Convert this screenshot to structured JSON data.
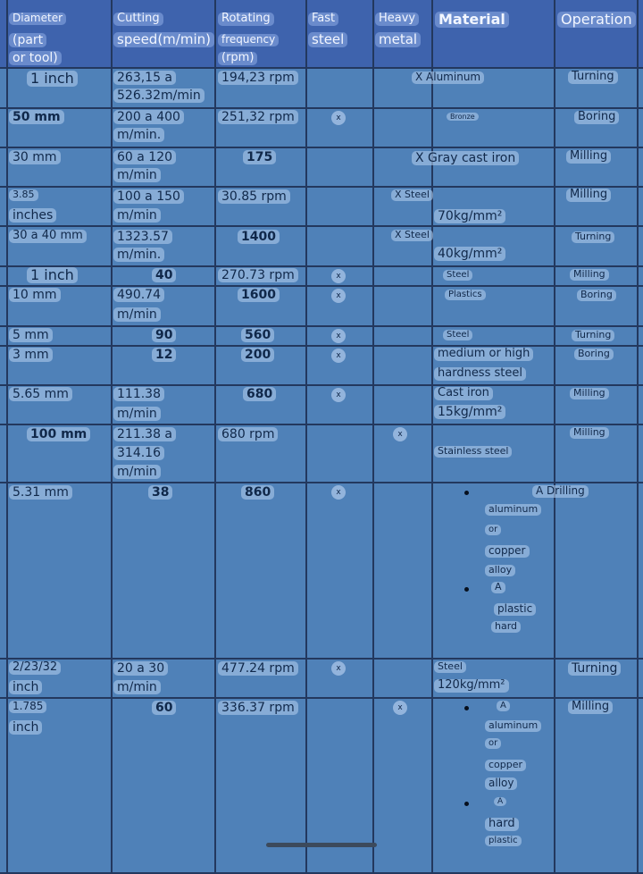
{
  "headers": {
    "diameter": [
      "Diameter",
      "(part",
      "or tool)"
    ],
    "cutting": [
      "Cutting",
      "speed(m/min)"
    ],
    "rotating": [
      "Rotating",
      "frequency",
      "(rpm)"
    ],
    "fast": [
      "Fast",
      "steel"
    ],
    "heavy": [
      "Heavy",
      "metal"
    ],
    "material": "Material",
    "operation": "Operation"
  },
  "rows": [
    {
      "diameter": [
        "1 inch"
      ],
      "cutting": [
        "263,15 a",
        "526.32m/min"
      ],
      "rpm": "194,23 rpm",
      "fast": "",
      "heavy": "",
      "material": [
        "X Aluminum"
      ],
      "operation": "Turning"
    },
    {
      "diameter": [
        "50 mm"
      ],
      "cutting": [
        "200 a 400",
        "m/min."
      ],
      "rpm": "251,32 rpm",
      "fast": "x",
      "heavy": "",
      "material": [
        "Bronze"
      ],
      "operation": "Boring"
    },
    {
      "diameter": [
        "30 mm"
      ],
      "cutting": [
        "60 a 120",
        "m/min"
      ],
      "rpm": "175",
      "fast": "",
      "heavy": "",
      "material": [
        "X Gray cast iron"
      ],
      "operation": "Milling"
    },
    {
      "diameter": [
        "3.85",
        "inches"
      ],
      "cutting": [
        "100 a 150",
        "m/min"
      ],
      "rpm": "30.85 rpm",
      "fast": "",
      "heavy": "X Steel",
      "material": [
        "70kg/mm²"
      ],
      "operation": "Milling"
    },
    {
      "diameter": [
        "30 a 40 mm"
      ],
      "cutting": [
        "1323.57",
        "m/min."
      ],
      "rpm": "1400",
      "fast": "",
      "heavy": "X Steel",
      "material": [
        "40kg/mm²"
      ],
      "operation": "Turning"
    },
    {
      "diameter": [
        "1 inch"
      ],
      "cutting": [
        "40"
      ],
      "rpm": "270.73 rpm",
      "fast": "x",
      "heavy": "",
      "material": [
        "Steel"
      ],
      "operation": "Milling"
    },
    {
      "diameter": [
        "10 mm"
      ],
      "cutting": [
        "490.74",
        "m/min"
      ],
      "rpm": "1600",
      "fast": "x",
      "heavy": "",
      "material": [
        "Plastics"
      ],
      "operation": "Boring"
    },
    {
      "diameter": [
        "5 mm"
      ],
      "cutting": [
        "90"
      ],
      "rpm": "560",
      "fast": "x",
      "heavy": "",
      "material": [
        "Steel"
      ],
      "operation": "Turning"
    },
    {
      "diameter": [
        "3 mm"
      ],
      "cutting": [
        "12"
      ],
      "rpm": "200",
      "fast": "x",
      "heavy": "",
      "material": [
        "medium or high",
        "hardness steel"
      ],
      "operation": "Boring"
    },
    {
      "diameter": [
        "5.65 mm"
      ],
      "cutting": [
        "111.38",
        "m/min"
      ],
      "rpm": "680",
      "fast": "x",
      "heavy": "",
      "material": [
        "Cast iron",
        "15kg/mm²"
      ],
      "operation": "Milling"
    },
    {
      "diameter": [
        "100 mm"
      ],
      "cutting": [
        "211.38 a",
        "314.16",
        "m/min"
      ],
      "rpm": "680 rpm",
      "fast": "",
      "heavy": "x",
      "material": [
        "Stainless steel"
      ],
      "operation": "Milling"
    },
    {
      "diameter": [
        "5.31 mm"
      ],
      "cutting": [
        "38"
      ],
      "rpm": "860",
      "fast": "x",
      "heavy": "",
      "material": [
        "A Drilling",
        "aluminum",
        "or",
        "copper",
        "alloy",
        "A",
        "plastic",
        "hard"
      ],
      "operation": ""
    },
    {
      "diameter": [
        "2/23/32",
        "inch"
      ],
      "cutting": [
        "20 a 30",
        "m/min"
      ],
      "rpm": "477.24 rpm",
      "fast": "x",
      "heavy": "",
      "material": [
        "Steel",
        "120kg/mm²"
      ],
      "operation": "Turning"
    },
    {
      "diameter": [
        "1.785",
        "inch"
      ],
      "cutting": [
        "60"
      ],
      "rpm": "336.37 rpm",
      "fast": "",
      "heavy": "x",
      "material": [
        "A",
        "aluminum",
        "or",
        "copper",
        "alloy",
        "A",
        "hard",
        "plastic"
      ],
      "operation": "Milling"
    }
  ]
}
